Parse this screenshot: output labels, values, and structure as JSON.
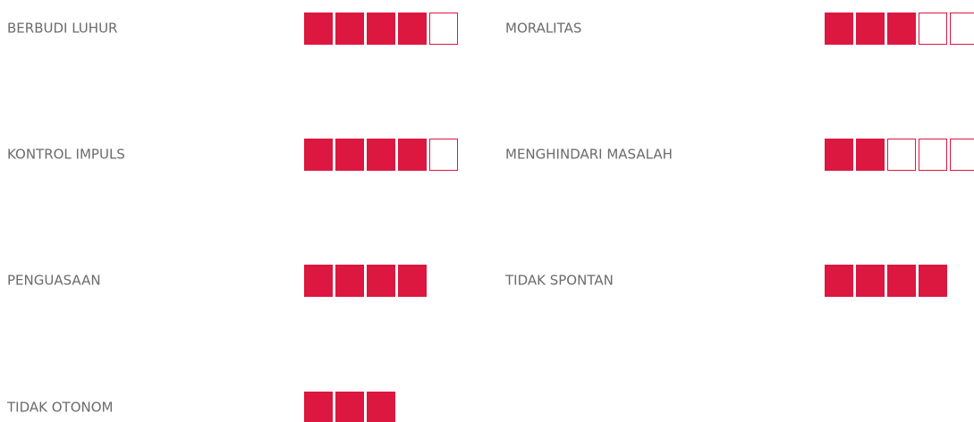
{
  "items": [
    {
      "label": "BERBUDI LUHUR",
      "score": 4,
      "max": 5
    },
    {
      "label": "MORALITAS",
      "score": 3,
      "max": 5
    },
    {
      "label": "KONTROL IMPULS",
      "score": 4,
      "max": 5
    },
    {
      "label": "MENGHINDARI MASALAH",
      "score": 2,
      "max": 5
    },
    {
      "label": "PENGUASAAN",
      "score": 4,
      "max": 4
    },
    {
      "label": "TIDAK SPONTAN",
      "score": 4,
      "max": 4
    },
    {
      "label": "TIDAK OTONOM",
      "score": 3,
      "max": 3
    }
  ]
}
